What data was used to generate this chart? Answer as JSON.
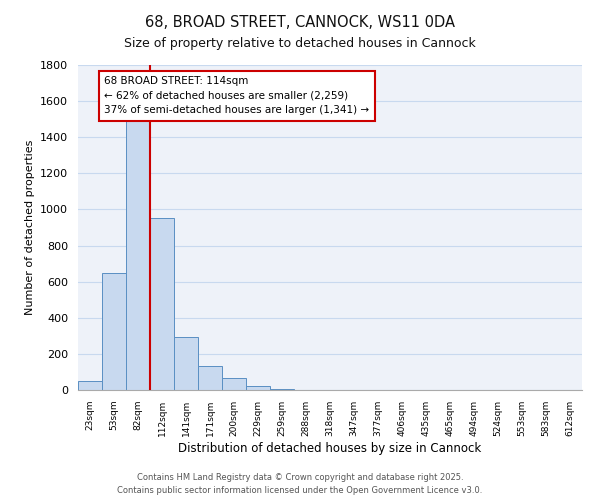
{
  "title": "68, BROAD STREET, CANNOCK, WS11 0DA",
  "subtitle": "Size of property relative to detached houses in Cannock",
  "xlabel": "Distribution of detached houses by size in Cannock",
  "ylabel": "Number of detached properties",
  "bin_labels": [
    "23sqm",
    "53sqm",
    "82sqm",
    "112sqm",
    "141sqm",
    "171sqm",
    "200sqm",
    "229sqm",
    "259sqm",
    "288sqm",
    "318sqm",
    "347sqm",
    "377sqm",
    "406sqm",
    "435sqm",
    "465sqm",
    "494sqm",
    "524sqm",
    "553sqm",
    "583sqm",
    "612sqm"
  ],
  "bar_values": [
    50,
    650,
    1490,
    950,
    295,
    135,
    65,
    20,
    5,
    0,
    0,
    0,
    0,
    0,
    0,
    0,
    0,
    0,
    0,
    0,
    0
  ],
  "bar_color": "#c8d9ef",
  "bar_edge_color": "#5a8fc3",
  "ylim": [
    0,
    1800
  ],
  "yticks": [
    0,
    200,
    400,
    600,
    800,
    1000,
    1200,
    1400,
    1600,
    1800
  ],
  "vline_x_index": 3,
  "vline_color": "#cc0000",
  "annotation_title": "68 BROAD STREET: 114sqm",
  "annotation_line1": "← 62% of detached houses are smaller (2,259)",
  "annotation_line2": "37% of semi-detached houses are larger (1,341) →",
  "annotation_box_color": "#ffffff",
  "annotation_box_edge": "#cc0000",
  "grid_color": "#c8d9ef",
  "background_color": "#eef2f9",
  "footer_line1": "Contains HM Land Registry data © Crown copyright and database right 2025.",
  "footer_line2": "Contains public sector information licensed under the Open Government Licence v3.0."
}
